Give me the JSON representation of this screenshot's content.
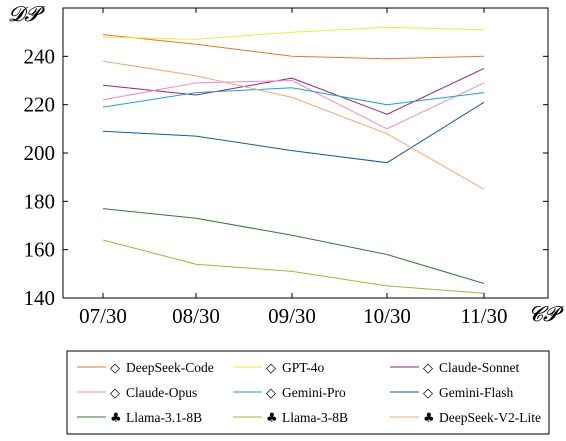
{
  "chart_data": {
    "type": "line",
    "xlabel": "𝓒𝓟",
    "ylabel": "𝓓𝓟",
    "categories": [
      "07/30",
      "08/30",
      "09/30",
      "10/30",
      "11/30"
    ],
    "yticks": [
      140,
      160,
      180,
      200,
      220,
      240
    ],
    "ylim": [
      140,
      260
    ],
    "grid": false,
    "legend_position": "bottom",
    "series": [
      {
        "name": "DeepSeek-Code",
        "marker": "◇",
        "color": "#e8762b",
        "values": [
          249,
          245,
          240,
          239,
          240
        ]
      },
      {
        "name": "GPT-4o",
        "marker": "◇",
        "color": "#f5e642",
        "values": [
          248,
          247,
          250,
          252,
          251
        ]
      },
      {
        "name": "Claude-Sonnet",
        "marker": "◇",
        "color": "#9b1f7d",
        "values": [
          228,
          224,
          231,
          216,
          235
        ]
      },
      {
        "name": "Claude-Opus",
        "marker": "◇",
        "color": "#f08ac8",
        "values": [
          222,
          229,
          230,
          210,
          229
        ]
      },
      {
        "name": "Gemini-Pro",
        "marker": "◇",
        "color": "#1ba3d0",
        "values": [
          219,
          225,
          227,
          220,
          225
        ]
      },
      {
        "name": "Gemini-Flash",
        "marker": "◇",
        "color": "#135d96",
        "values": [
          209,
          207,
          201,
          196,
          221
        ]
      },
      {
        "name": "Llama-3.1-8B",
        "marker": "♣",
        "color": "#2e7b2a",
        "values": [
          177,
          173,
          166,
          158,
          146
        ]
      },
      {
        "name": "Llama-3-8B",
        "marker": "♣",
        "color": "#8fbf3a",
        "values": [
          164,
          154,
          151,
          145,
          142
        ]
      },
      {
        "name": "DeepSeek-V2-Lite",
        "marker": "♣",
        "color": "#f3a96c",
        "values": [
          238,
          232,
          223,
          208,
          185
        ]
      }
    ]
  }
}
